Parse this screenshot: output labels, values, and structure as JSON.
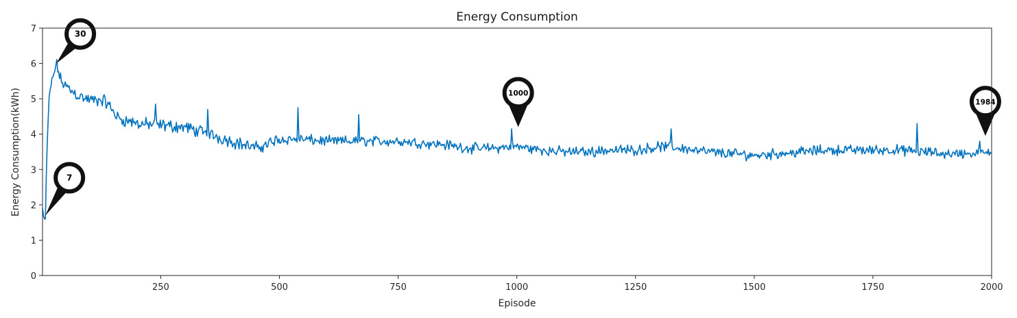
{
  "chart_data": {
    "type": "line",
    "title": "Energy Consumption",
    "xlabel": "Episode",
    "ylabel": "Energy Consumption(kWh)",
    "xlim": [
      1,
      2000
    ],
    "ylim": [
      0,
      7
    ],
    "xticks": [
      250,
      500,
      750,
      1000,
      1250,
      1500,
      1750,
      2000
    ],
    "yticks": [
      0,
      1,
      2,
      3,
      4,
      5,
      6,
      7
    ],
    "line_color": "#0072bd",
    "grid": false,
    "series": [
      {
        "name": "Energy Consumption",
        "trend": [
          [
            1,
            1.9
          ],
          [
            4,
            1.6
          ],
          [
            7,
            1.6
          ],
          [
            10,
            3.4
          ],
          [
            14,
            4.8
          ],
          [
            18,
            5.3
          ],
          [
            23,
            5.6
          ],
          [
            30,
            6.0
          ],
          [
            40,
            5.5
          ],
          [
            55,
            5.3
          ],
          [
            70,
            5.15
          ],
          [
            90,
            5.0
          ],
          [
            110,
            4.95
          ],
          [
            130,
            4.95
          ],
          [
            145,
            4.75
          ],
          [
            160,
            4.45
          ],
          [
            200,
            4.3
          ],
          [
            250,
            4.25
          ],
          [
            300,
            4.2
          ],
          [
            350,
            4.0
          ],
          [
            400,
            3.8
          ],
          [
            450,
            3.6
          ],
          [
            500,
            3.85
          ],
          [
            550,
            3.85
          ],
          [
            600,
            3.8
          ],
          [
            650,
            3.8
          ],
          [
            700,
            3.8
          ],
          [
            750,
            3.8
          ],
          [
            800,
            3.75
          ],
          [
            850,
            3.7
          ],
          [
            900,
            3.6
          ],
          [
            950,
            3.6
          ],
          [
            1000,
            3.65
          ],
          [
            1050,
            3.55
          ],
          [
            1100,
            3.5
          ],
          [
            1150,
            3.5
          ],
          [
            1200,
            3.55
          ],
          [
            1250,
            3.55
          ],
          [
            1300,
            3.65
          ],
          [
            1350,
            3.6
          ],
          [
            1400,
            3.5
          ],
          [
            1450,
            3.45
          ],
          [
            1500,
            3.4
          ],
          [
            1550,
            3.45
          ],
          [
            1600,
            3.5
          ],
          [
            1650,
            3.55
          ],
          [
            1700,
            3.55
          ],
          [
            1750,
            3.55
          ],
          [
            1800,
            3.55
          ],
          [
            1850,
            3.5
          ],
          [
            1900,
            3.45
          ],
          [
            1950,
            3.45
          ],
          [
            2000,
            3.45
          ]
        ],
        "noise_amplitude": 0.18,
        "spikes": [
          [
            240,
            4.85
          ],
          [
            350,
            4.7
          ],
          [
            540,
            4.75
          ],
          [
            668,
            4.55
          ],
          [
            990,
            4.15
          ],
          [
            1325,
            4.15
          ],
          [
            1843,
            4.3
          ],
          [
            1975,
            3.8
          ]
        ]
      }
    ],
    "annotations": [
      {
        "label": "7",
        "x": 7,
        "y": 1.7
      },
      {
        "label": "30",
        "x": 30,
        "y": 6.0
      },
      {
        "label": "1000",
        "x": 1000,
        "y": 4.2
      },
      {
        "label": "1984",
        "x": 1984,
        "y": 3.95
      }
    ]
  }
}
